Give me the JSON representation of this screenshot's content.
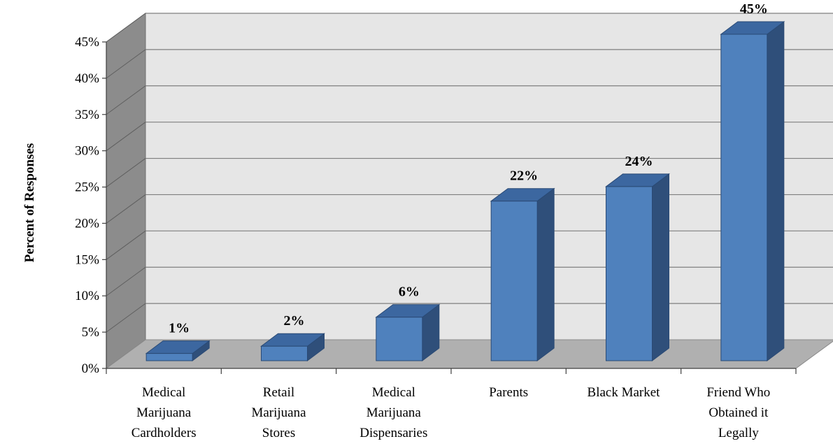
{
  "chart_data": {
    "type": "bar",
    "style": "3d-column",
    "ylabel": "Percent of Responses",
    "xlabel": "",
    "title": "",
    "categories": [
      [
        "Medical",
        "Marijuana",
        "Cardholders"
      ],
      [
        "Retail",
        "Marijuana",
        "Stores"
      ],
      [
        "Medical",
        "Marijuana",
        "Dispensaries"
      ],
      [
        "Parents"
      ],
      [
        "Black Market"
      ],
      [
        "Friend Who",
        "Obtained it",
        "Legally"
      ]
    ],
    "values": [
      1,
      2,
      6,
      22,
      24,
      45
    ],
    "data_labels": [
      "1%",
      "2%",
      "6%",
      "22%",
      "24%",
      "45%"
    ],
    "ylim": [
      0,
      45
    ],
    "yticks": [
      {
        "value": 0,
        "label": "0%"
      },
      {
        "value": 5,
        "label": "5%"
      },
      {
        "value": 10,
        "label": "10%"
      },
      {
        "value": 15,
        "label": "15%"
      },
      {
        "value": 20,
        "label": "20%"
      },
      {
        "value": 25,
        "label": "25%"
      },
      {
        "value": 30,
        "label": "30%"
      },
      {
        "value": 35,
        "label": "35%"
      },
      {
        "value": 40,
        "label": "40%"
      },
      {
        "value": 45,
        "label": "45%"
      }
    ],
    "grid": true,
    "legend": "none",
    "colors": {
      "bar_front": "#4f81bd",
      "bar_side": "#2f4f7a",
      "bar_top": "#3c67a0",
      "bar_edge": "#2a4a75",
      "back_wall": "#e6e6e6",
      "side_wall": "#8c8c8c",
      "floor": "#b0b0b0",
      "grid": "#7f7f7f"
    }
  }
}
